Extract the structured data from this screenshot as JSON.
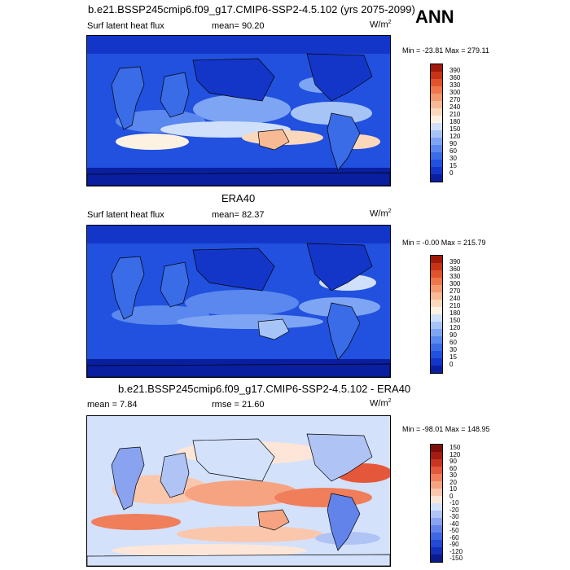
{
  "top_title": "b.e21.BSSP245cmip6.f09_g17.CMIP6-SSP2-4.5.102 (yrs 2075-2099)",
  "season": "ANN",
  "panels": [
    {
      "title": "",
      "left_label": "Surf latent heat flux",
      "center_label": "mean=  90.20",
      "units": "W/m",
      "units_sup": "2",
      "minmax": "Min = -23.81 Max = 279.11",
      "colorbar": {
        "colors": [
          "#0a1f9f",
          "#1436c8",
          "#2151de",
          "#3a6ce8",
          "#5a88ee",
          "#7ea5f3",
          "#a7c4f7",
          "#d0e0fb",
          "#fdf2e2",
          "#fbd8bb",
          "#f8b995",
          "#f4986f",
          "#ee764b",
          "#e0532c",
          "#c63317",
          "#a1190b"
        ],
        "labels": [
          "0",
          "15",
          "30",
          "60",
          "90",
          "120",
          "150",
          "180",
          "210",
          "240",
          "270",
          "300",
          "330",
          "360",
          "390"
        ]
      }
    },
    {
      "title": "ERA40",
      "left_label": "Surf latent heat flux",
      "center_label": "mean=  82.37",
      "units": "W/m",
      "units_sup": "2",
      "minmax": "Min =  -0.00 Max = 215.79",
      "colorbar": {
        "colors": [
          "#0a1f9f",
          "#1436c8",
          "#2151de",
          "#3a6ce8",
          "#5a88ee",
          "#7ea5f3",
          "#a7c4f7",
          "#d0e0fb",
          "#fdf2e2",
          "#fbd8bb",
          "#f8b995",
          "#f4986f",
          "#ee764b",
          "#e0532c",
          "#c63317",
          "#a1190b"
        ],
        "labels": [
          "0",
          "15",
          "30",
          "60",
          "90",
          "120",
          "150",
          "180",
          "210",
          "240",
          "270",
          "300",
          "330",
          "360",
          "390"
        ]
      }
    },
    {
      "title": "b.e21.BSSP245cmip6.f09_g17.CMIP6-SSP2-4.5.102 - ERA40",
      "left_label": "mean =  7.84",
      "center_label": "rmse =  21.60",
      "units": "W/m",
      "units_sup": "2",
      "minmax": "Min = -98.01 Max = 148.95",
      "colorbar": {
        "colors": [
          "#0a1a8c",
          "#1230b8",
          "#2349d6",
          "#3f66e4",
          "#6283ea",
          "#89a3f0",
          "#afc3f5",
          "#d4e1fb",
          "#fde6d8",
          "#fac7ad",
          "#f6a382",
          "#f07e5b",
          "#e5573a",
          "#ca3420",
          "#a51c12",
          "#7e0d0a"
        ],
        "labels": [
          "-150",
          "-120",
          "-90",
          "-60",
          "-50",
          "-40",
          "-30",
          "-20",
          "-10",
          "0",
          "10",
          "20",
          "30",
          "60",
          "90",
          "120",
          "150"
        ]
      }
    }
  ]
}
